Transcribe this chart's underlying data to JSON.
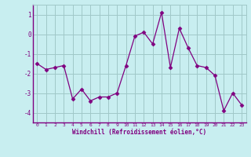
{
  "x": [
    0,
    1,
    2,
    3,
    4,
    5,
    6,
    7,
    8,
    9,
    10,
    11,
    12,
    13,
    14,
    15,
    16,
    17,
    18,
    19,
    20,
    21,
    22,
    23
  ],
  "y": [
    -1.5,
    -1.8,
    -1.7,
    -1.6,
    -3.3,
    -2.8,
    -3.4,
    -3.2,
    -3.2,
    -3.0,
    -1.6,
    -0.1,
    0.1,
    -0.5,
    1.1,
    -1.7,
    0.3,
    -0.7,
    -1.6,
    -1.7,
    -2.1,
    -3.9,
    -3.0,
    -3.6
  ],
  "line_color": "#800080",
  "marker": "D",
  "marker_size": 2.5,
  "bg_color": "#c8eef0",
  "grid_color": "#a0c8c8",
  "xlabel": "Windchill (Refroidissement éolien,°C)",
  "xlabel_color": "#800080",
  "tick_color": "#800080",
  "spine_color": "#800080",
  "ylim": [
    -4.5,
    1.5
  ],
  "yticks": [
    1,
    0,
    -1,
    -2,
    -3,
    -4
  ],
  "xlim": [
    -0.5,
    23.5
  ]
}
